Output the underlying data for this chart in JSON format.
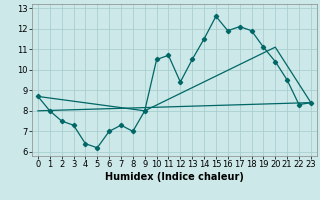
{
  "title": "",
  "xlabel": "Humidex (Indice chaleur)",
  "background_color": "#cce8e8",
  "line_color": "#006666",
  "xlim": [
    -0.5,
    23.5
  ],
  "ylim": [
    5.8,
    13.2
  ],
  "yticks": [
    6,
    7,
    8,
    9,
    10,
    11,
    12,
    13
  ],
  "xticks": [
    0,
    1,
    2,
    3,
    4,
    5,
    6,
    7,
    8,
    9,
    10,
    11,
    12,
    13,
    14,
    15,
    16,
    17,
    18,
    19,
    20,
    21,
    22,
    23
  ],
  "line1_x": [
    0,
    1,
    2,
    3,
    4,
    5,
    6,
    7,
    8,
    9,
    10,
    11,
    12,
    13,
    14,
    15,
    16,
    17,
    18,
    19,
    20,
    21,
    22,
    23
  ],
  "line1_y": [
    8.7,
    8.0,
    7.5,
    7.3,
    6.4,
    6.2,
    7.0,
    7.3,
    7.0,
    8.0,
    10.5,
    10.7,
    9.4,
    10.5,
    11.5,
    12.6,
    11.9,
    12.1,
    11.9,
    11.1,
    10.4,
    9.5,
    8.3,
    8.4
  ],
  "line2_x": [
    0,
    9,
    20,
    23
  ],
  "line2_y": [
    8.7,
    8.0,
    11.1,
    8.4
  ],
  "line3_x": [
    0,
    23
  ],
  "line3_y": [
    8.0,
    8.4
  ],
  "grid_color": "#aacece",
  "xlabel_fontsize": 7,
  "tick_fontsize": 6
}
